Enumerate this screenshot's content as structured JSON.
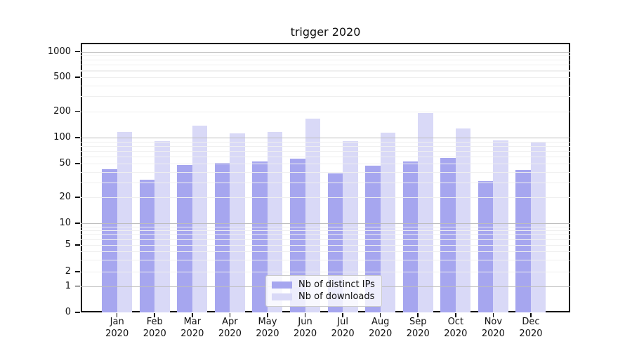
{
  "title": "trigger 2020",
  "colors": {
    "axis": "#000000",
    "grid_major": "#bdbdbd",
    "grid_minor": "#efefef",
    "legend_border": "#cbcbcb",
    "background": "#ffffff"
  },
  "chart_data": {
    "type": "bar",
    "title": "trigger 2020",
    "categories": [
      "Jan",
      "Feb",
      "Mar",
      "Apr",
      "May",
      "Jun",
      "Jul",
      "Aug",
      "Sep",
      "Oct",
      "Nov",
      "Dec"
    ],
    "category_year": "2020",
    "series": [
      {
        "name": "Nb of distinct IPs",
        "color": "#a6a6ef",
        "values": [
          43,
          32,
          48,
          51,
          53,
          57,
          38,
          47,
          53,
          58,
          31,
          42
        ]
      },
      {
        "name": "Nb of downloads",
        "color": "#d9d9f7",
        "values": [
          115,
          91,
          138,
          112,
          116,
          165,
          91,
          114,
          192,
          128,
          93,
          89
        ]
      }
    ],
    "xlabel": "",
    "ylabel": "",
    "yscale": "symlog",
    "ylim": [
      0,
      1250
    ],
    "y_ticks": [
      0,
      1,
      2,
      5,
      10,
      20,
      50,
      100,
      200,
      500,
      1000
    ],
    "y_major_gridlines": [
      1,
      10,
      100,
      1000
    ],
    "y_minor_gridlines": [
      3,
      4,
      6,
      7,
      8,
      9,
      30,
      40,
      60,
      70,
      80,
      90,
      300,
      400,
      600,
      700,
      800,
      900
    ],
    "grid": true,
    "legend_position": "lower center"
  }
}
